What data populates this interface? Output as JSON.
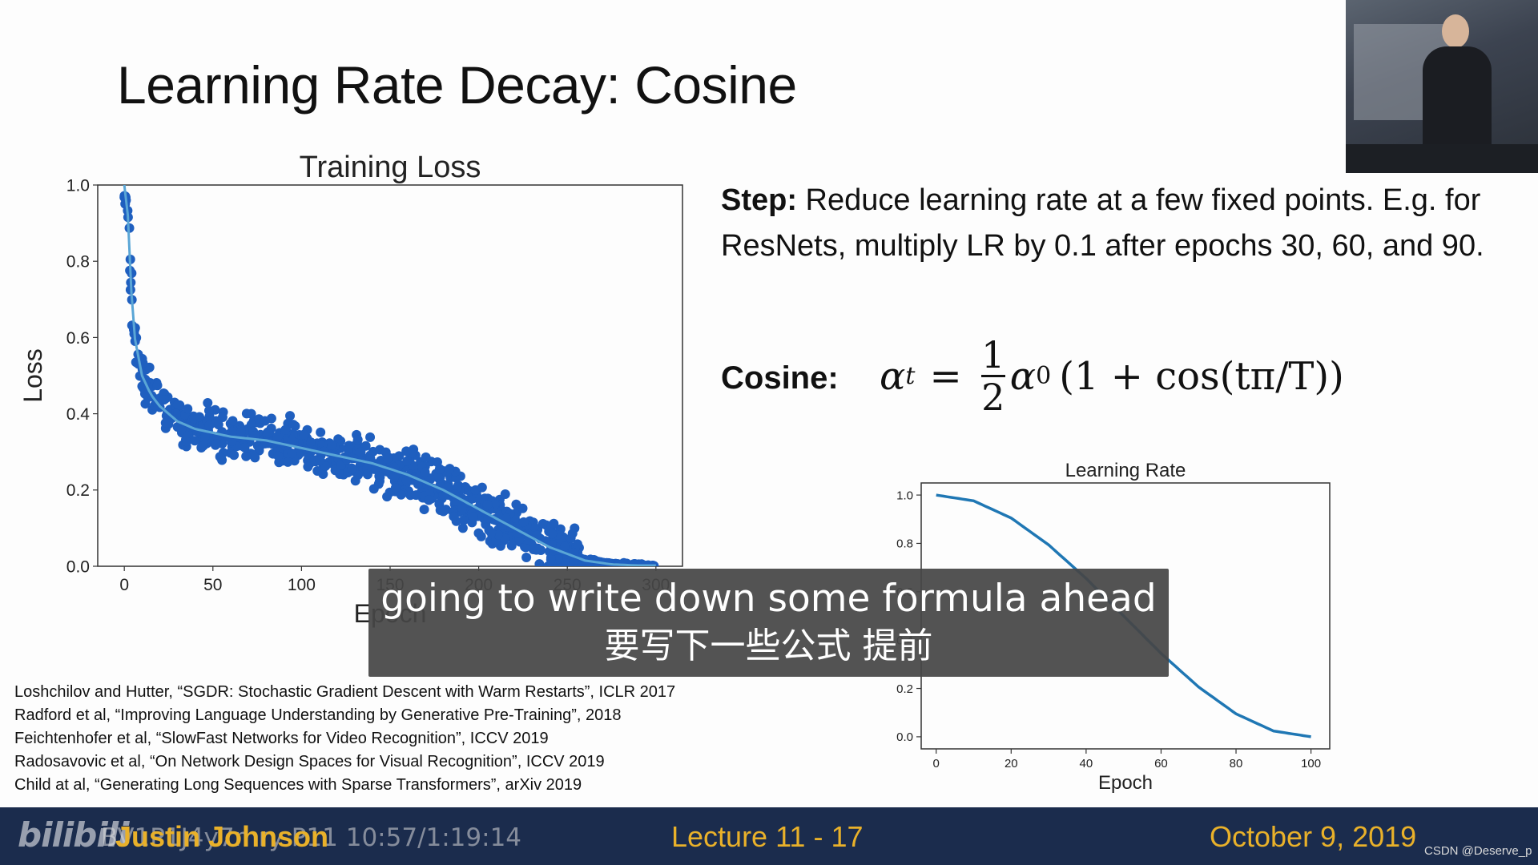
{
  "slide": {
    "title_prefix": "Learning Rate Decay: ",
    "title_accent": "Cosine",
    "step_label": "Step:",
    "step_text": " Reduce learning rate at a few fixed points. E.g. for ResNets, multiply LR by 0.1 after epochs 30, 60, and 90.",
    "cosine_label": "Cosine:",
    "formula": {
      "lhs_var": "α",
      "lhs_sub": "t",
      "equals": "=",
      "frac_num": "1",
      "frac_den": "2",
      "alpha0_var": "α",
      "alpha0_sub": "0",
      "rhs": "(1 + cos(tπ/T))"
    },
    "references": [
      "Loshchilov and Hutter, “SGDR: Stochastic Gradient Descent with Warm Restarts”, ICLR 2017",
      "Radford et al, “Improving Language Understanding by Generative Pre-Training”, 2018",
      "Feichtenhofer et al, “SlowFast Networks for Video Recognition”, ICCV 2019",
      "Radosavovic et al, “On Network Design Spaces for Visual Recognition”, ICCV 2019",
      "Child at al, “Generating Long Sequences with Sparse Transformers”, arXiv 2019"
    ]
  },
  "subtitle": {
    "en": "going to write down some formula ahead",
    "zh": "要写下一些公式 提前"
  },
  "footer": {
    "logo": "bilibili",
    "overlay_id": "BV1P1J4y7mry P11 10:57/1:19:14",
    "author": "Justin Johnson",
    "lecture": "Lecture 11 - 17",
    "date": "October 9, 2019",
    "credit": "CSDN @Deserve_p"
  },
  "colors": {
    "scatter": "#1f5fbf",
    "scatter_line": "#5aa6d6",
    "lr_line": "#1f77b4",
    "footer_bg": "#1b2c4d",
    "footer_text": "#e9b12a"
  },
  "chart_data": [
    {
      "type": "scatter",
      "title": "Training Loss",
      "xlabel": "Epoch",
      "ylabel": "Loss",
      "xlim": [
        -15,
        315
      ],
      "ylim": [
        0.0,
        1.0
      ],
      "xticks": [
        0,
        50,
        100,
        150,
        200,
        250,
        300
      ],
      "yticks": [
        0.0,
        0.2,
        0.4,
        0.6,
        0.8,
        1.0
      ],
      "xtick_labels": [
        "0",
        "50",
        "100",
        "150",
        "200",
        "250",
        "300"
      ],
      "ytick_labels": [
        "0.0",
        "0.2",
        "0.4",
        "0.6",
        "0.8",
        "1.0"
      ],
      "grid": false,
      "series": [
        {
          "kind": "smoothed",
          "x": [
            0,
            2,
            5,
            10,
            15,
            20,
            30,
            40,
            50,
            60,
            80,
            100,
            120,
            140,
            160,
            180,
            200,
            220,
            240,
            260,
            275,
            290,
            300
          ],
          "y": [
            1.0,
            0.92,
            0.62,
            0.5,
            0.45,
            0.42,
            0.38,
            0.36,
            0.35,
            0.34,
            0.33,
            0.31,
            0.29,
            0.27,
            0.24,
            0.2,
            0.15,
            0.1,
            0.05,
            0.015,
            0.005,
            0.002,
            0.002
          ]
        }
      ]
    },
    {
      "type": "line",
      "title": "Learning Rate",
      "xlabel": "Epoch",
      "ylabel": "",
      "xlim": [
        -4,
        105
      ],
      "ylim": [
        -0.05,
        1.05
      ],
      "xticks": [
        0,
        20,
        40,
        60,
        80,
        100
      ],
      "yticks": [
        0.0,
        0.2,
        0.4,
        0.6,
        0.8,
        1.0
      ],
      "xtick_labels": [
        "0",
        "20",
        "40",
        "60",
        "80",
        "100"
      ],
      "ytick_labels": [
        "0.0",
        "0.2",
        "0.4",
        "0.6",
        "0.8",
        "1.0"
      ],
      "grid": false,
      "series": [
        {
          "x": [
            0,
            10,
            20,
            30,
            40,
            50,
            60,
            70,
            80,
            90,
            100
          ],
          "y": [
            1.0,
            0.976,
            0.905,
            0.794,
            0.655,
            0.5,
            0.345,
            0.206,
            0.095,
            0.024,
            0.0
          ]
        }
      ]
    }
  ]
}
